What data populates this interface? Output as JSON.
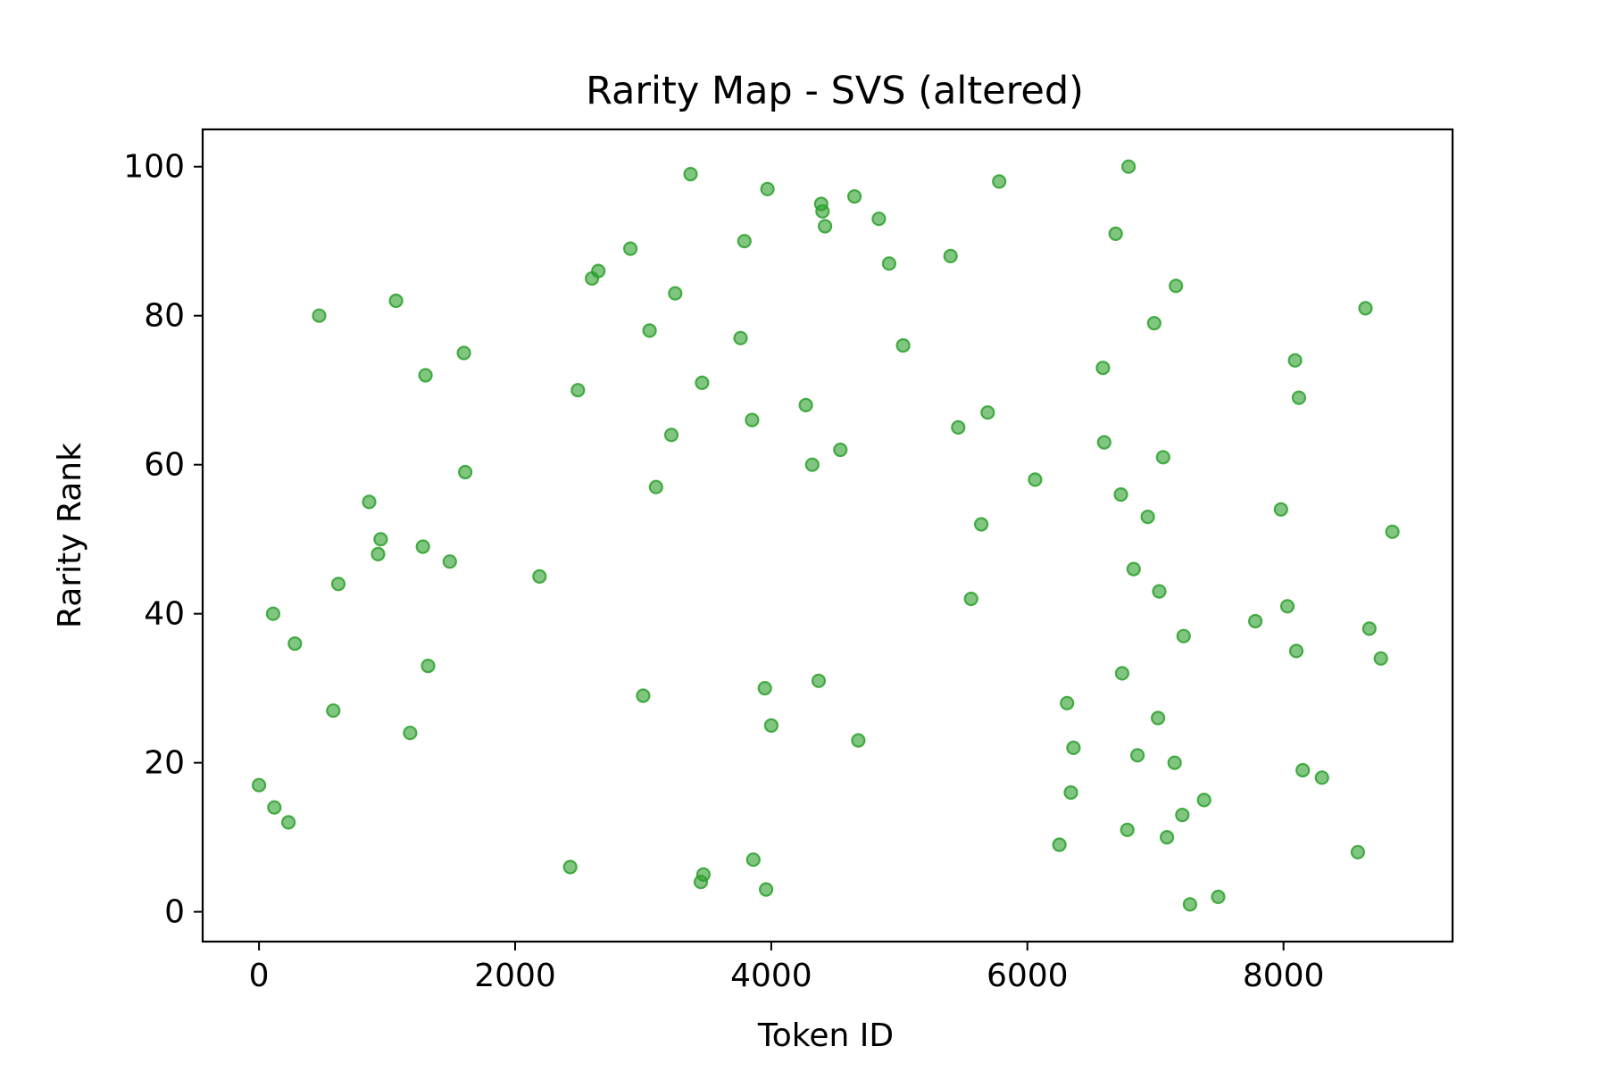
{
  "chart_data": {
    "type": "scatter",
    "title": "Rarity Map - SVS (altered)",
    "xlabel": "Token ID",
    "ylabel": "Rarity Rank",
    "xlim": [
      -440,
      9320
    ],
    "ylim": [
      -4,
      105
    ],
    "xticks": [
      0,
      2000,
      4000,
      6000,
      8000
    ],
    "yticks": [
      0,
      20,
      40,
      60,
      80,
      100
    ],
    "grid": false,
    "marker_color": "#2ca02c",
    "marker_alpha": 0.6,
    "series": [
      {
        "points": [
          [
            0,
            17
          ],
          [
            120,
            14
          ],
          [
            230,
            12
          ],
          [
            110,
            40
          ],
          [
            280,
            36
          ],
          [
            470,
            80
          ],
          [
            580,
            27
          ],
          [
            620,
            44
          ],
          [
            860,
            55
          ],
          [
            930,
            48
          ],
          [
            950,
            50
          ],
          [
            1070,
            82
          ],
          [
            1180,
            24
          ],
          [
            1280,
            49
          ],
          [
            1300,
            72
          ],
          [
            1320,
            33
          ],
          [
            1490,
            47
          ],
          [
            1600,
            75
          ],
          [
            1610,
            59
          ],
          [
            2190,
            45
          ],
          [
            2430,
            6
          ],
          [
            2490,
            70
          ],
          [
            2600,
            85
          ],
          [
            2650,
            86
          ],
          [
            2900,
            89
          ],
          [
            3000,
            29
          ],
          [
            3050,
            78
          ],
          [
            3100,
            57
          ],
          [
            3220,
            64
          ],
          [
            3250,
            83
          ],
          [
            3370,
            99
          ],
          [
            3450,
            4
          ],
          [
            3470,
            5
          ],
          [
            3460,
            71
          ],
          [
            3760,
            77
          ],
          [
            3790,
            90
          ],
          [
            3850,
            66
          ],
          [
            3860,
            7
          ],
          [
            3950,
            30
          ],
          [
            3960,
            3
          ],
          [
            3970,
            97
          ],
          [
            4000,
            25
          ],
          [
            4270,
            68
          ],
          [
            4320,
            60
          ],
          [
            4370,
            31
          ],
          [
            4390,
            95
          ],
          [
            4400,
            94
          ],
          [
            4420,
            92
          ],
          [
            4540,
            62
          ],
          [
            4650,
            96
          ],
          [
            4680,
            23
          ],
          [
            4840,
            93
          ],
          [
            4920,
            87
          ],
          [
            5030,
            76
          ],
          [
            5400,
            88
          ],
          [
            5460,
            65
          ],
          [
            5560,
            42
          ],
          [
            5640,
            52
          ],
          [
            5690,
            67
          ],
          [
            5780,
            98
          ],
          [
            6060,
            58
          ],
          [
            6250,
            9
          ],
          [
            6310,
            28
          ],
          [
            6340,
            16
          ],
          [
            6360,
            22
          ],
          [
            6590,
            73
          ],
          [
            6600,
            63
          ],
          [
            6690,
            91
          ],
          [
            6730,
            56
          ],
          [
            6740,
            32
          ],
          [
            6780,
            11
          ],
          [
            6790,
            100
          ],
          [
            6830,
            46
          ],
          [
            6860,
            21
          ],
          [
            6940,
            53
          ],
          [
            6990,
            79
          ],
          [
            7020,
            26
          ],
          [
            7030,
            43
          ],
          [
            7060,
            61
          ],
          [
            7090,
            10
          ],
          [
            7150,
            20
          ],
          [
            7160,
            84
          ],
          [
            7210,
            13
          ],
          [
            7220,
            37
          ],
          [
            7270,
            1
          ],
          [
            7380,
            15
          ],
          [
            7490,
            2
          ],
          [
            7780,
            39
          ],
          [
            7980,
            54
          ],
          [
            8030,
            41
          ],
          [
            8090,
            74
          ],
          [
            8100,
            35
          ],
          [
            8120,
            69
          ],
          [
            8150,
            19
          ],
          [
            8300,
            18
          ],
          [
            8580,
            8
          ],
          [
            8640,
            81
          ],
          [
            8670,
            38
          ],
          [
            8760,
            34
          ],
          [
            8850,
            51
          ]
        ]
      }
    ]
  }
}
